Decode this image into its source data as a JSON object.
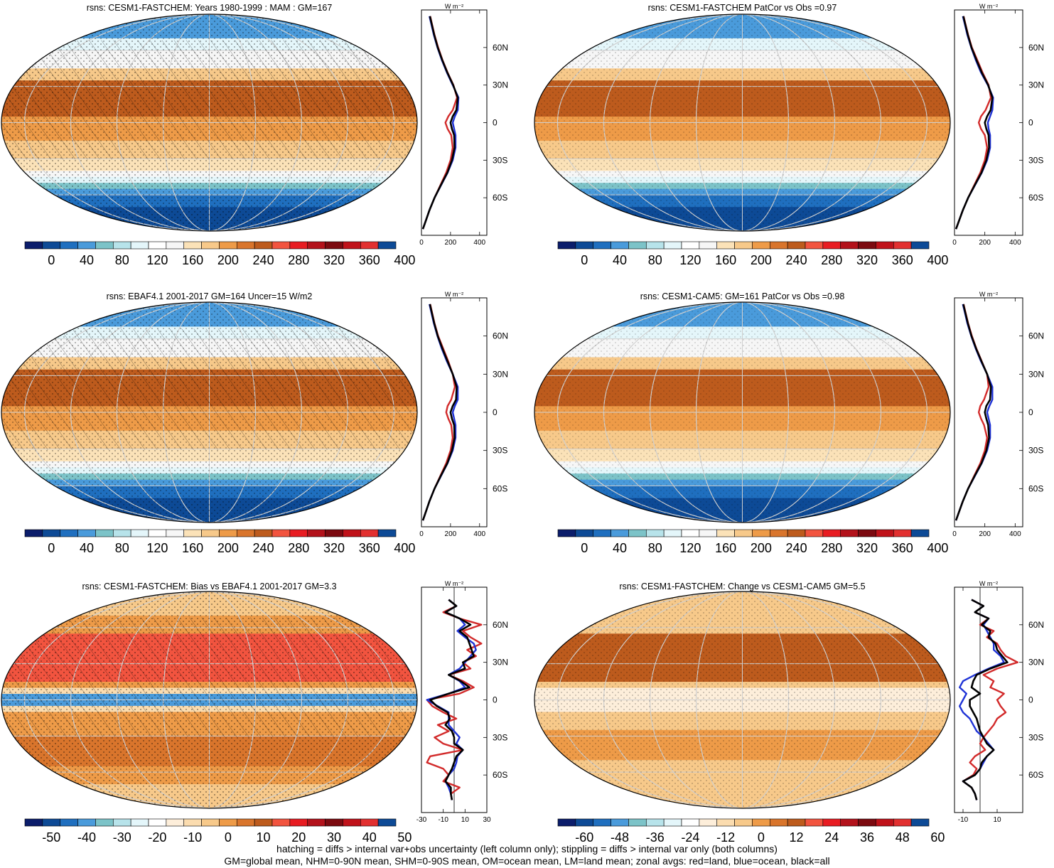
{
  "colors": {
    "abs_scale": [
      "#0b1d6b",
      "#0d4a96",
      "#1f6fbf",
      "#4a9bdb",
      "#7cc3c8",
      "#b7e3ea",
      "#e4f6fa",
      "#ffffff",
      "#f6f6f6",
      "#fbe2b8",
      "#f7c98a",
      "#ee9b48",
      "#d9752c",
      "#bd5b1d",
      "#f2543f",
      "#e81c22",
      "#b3121b",
      "#7c0a10",
      "#c0121a",
      "#e23030",
      "#0d4a96"
    ],
    "diff_scale": [
      "#0b1d6b",
      "#0d4a96",
      "#1f6fbf",
      "#4a9bdb",
      "#7cc3c8",
      "#b7e3ea",
      "#e4f6fa",
      "#ffffff",
      "#fdeeda",
      "#fbdcaf",
      "#f7c98a",
      "#ee9b48",
      "#d9752c",
      "#bd5b1d",
      "#f2543f",
      "#e81c22",
      "#b3121b",
      "#7c0a10",
      "#c0121a",
      "#e23030",
      "#0d4a96"
    ],
    "land": "#d22a2a",
    "ocean": "#1f33d6",
    "all": "#000000"
  },
  "chart_data": [
    {
      "id": "p1",
      "type": "heatmap",
      "title": "rsns: CESM1-FASTCHEM: Years 1980-1999 : MAM : GM=167",
      "field": "abs",
      "hatching": true,
      "stipple_density": 0.5,
      "colorbar_ticks": [
        "0",
        "40",
        "80",
        "120",
        "160",
        "200",
        "240",
        "280",
        "320",
        "360",
        "400"
      ],
      "zonal": {
        "unit": "W m⁻²",
        "xlim": [
          0,
          450
        ],
        "xticks": [
          0,
          200,
          400
        ],
        "lat_ticks": [
          "60N",
          "30N",
          "0",
          "30S",
          "60S"
        ],
        "lat": [
          85,
          80,
          70,
          60,
          50,
          40,
          30,
          20,
          10,
          5,
          0,
          -5,
          -10,
          -20,
          -30,
          -40,
          -50,
          -60,
          -70,
          -80,
          -85
        ],
        "series": [
          {
            "key": "land",
            "values": [
              60,
              70,
              90,
              115,
              145,
              180,
              220,
              245,
              215,
              185,
              165,
              180,
              205,
              215,
              200,
              170,
              130,
              90,
              55,
              25,
              10
            ]
          },
          {
            "key": "ocean",
            "values": [
              55,
              65,
              85,
              110,
              140,
              175,
              215,
              255,
              250,
              230,
              215,
              225,
              235,
              235,
              215,
              180,
              135,
              90,
              55,
              25,
              10
            ]
          },
          {
            "key": "all",
            "values": [
              58,
              68,
              88,
              112,
              143,
              178,
              218,
              250,
              240,
              215,
              200,
              210,
              225,
              228,
              210,
              178,
              133,
              90,
              55,
              25,
              10
            ]
          }
        ]
      }
    },
    {
      "id": "p2",
      "type": "heatmap",
      "title": "rsns: CESM1-FASTCHEM PatCor vs Obs =0.97",
      "field": "abs",
      "hatching": false,
      "stipple_density": 0.25,
      "colorbar_ticks": [
        "0",
        "40",
        "80",
        "120",
        "160",
        "200",
        "240",
        "280",
        "320",
        "360",
        "400"
      ],
      "zonal": {
        "unit": "W m⁻²",
        "xlim": [
          0,
          450
        ],
        "xticks": [
          0,
          200,
          400
        ],
        "lat_ticks": [
          "60N",
          "30N",
          "0",
          "30S",
          "60S"
        ],
        "lat": [
          85,
          80,
          70,
          60,
          50,
          40,
          30,
          20,
          10,
          5,
          0,
          -5,
          -10,
          -20,
          -30,
          -40,
          -50,
          -60,
          -70,
          -80,
          -85
        ],
        "series": [
          {
            "key": "land",
            "values": [
              60,
              70,
              90,
              115,
              150,
              185,
              225,
              240,
              205,
              175,
              160,
              175,
              200,
              215,
              200,
              170,
              130,
              90,
              55,
              25,
              10
            ]
          },
          {
            "key": "ocean",
            "values": [
              55,
              65,
              85,
              110,
              140,
              175,
              220,
              255,
              250,
              235,
              220,
              225,
              235,
              235,
              215,
              180,
              135,
              90,
              55,
              25,
              10
            ]
          },
          {
            "key": "all",
            "values": [
              58,
              68,
              88,
              112,
              145,
              180,
              222,
              250,
              238,
              215,
              200,
              210,
              225,
              228,
              210,
              178,
              133,
              90,
              55,
              25,
              10
            ]
          }
        ]
      }
    },
    {
      "id": "p3",
      "type": "heatmap",
      "title": "rsns: EBAF4.1 2001-2017 GM=164 Uncer=15 W/m2",
      "field": "abs",
      "hatching": true,
      "stipple_density": 0.45,
      "colorbar_ticks": [
        "0",
        "40",
        "80",
        "120",
        "160",
        "200",
        "240",
        "280",
        "320",
        "360",
        "400"
      ],
      "zonal": {
        "unit": "W m⁻²",
        "xlim": [
          0,
          450
        ],
        "xticks": [
          0,
          200,
          400
        ],
        "lat_ticks": [
          "60N",
          "30N",
          "0",
          "30S",
          "60S"
        ],
        "lat": [
          85,
          80,
          70,
          60,
          50,
          40,
          30,
          20,
          10,
          5,
          0,
          -5,
          -10,
          -20,
          -30,
          -40,
          -50,
          -60,
          -70,
          -80,
          -85
        ],
        "series": [
          {
            "key": "land",
            "values": [
              60,
              70,
              90,
              115,
              150,
              185,
              215,
              230,
              205,
              180,
              170,
              185,
              205,
              215,
              200,
              170,
              130,
              90,
              55,
              25,
              10
            ]
          },
          {
            "key": "ocean",
            "values": [
              55,
              65,
              85,
              110,
              140,
              175,
              215,
              250,
              250,
              230,
              215,
              225,
              235,
              235,
              215,
              180,
              135,
              90,
              55,
              25,
              10
            ]
          },
          {
            "key": "all",
            "values": [
              58,
              68,
              88,
              112,
              145,
              180,
              215,
              242,
              238,
              215,
              200,
              210,
              225,
              228,
              210,
              178,
              133,
              90,
              55,
              25,
              10
            ]
          }
        ]
      }
    },
    {
      "id": "p4",
      "type": "heatmap",
      "title": "rsns: CESM1-CAM5: GM=161 PatCor vs Obs =0.98",
      "field": "abs",
      "hatching": false,
      "stipple_density": 0.2,
      "colorbar_ticks": [
        "0",
        "40",
        "80",
        "120",
        "160",
        "200",
        "240",
        "280",
        "320",
        "360",
        "400"
      ],
      "zonal": {
        "unit": "W m⁻²",
        "xlim": [
          0,
          450
        ],
        "xticks": [
          0,
          200,
          400
        ],
        "lat_ticks": [
          "60N",
          "30N",
          "0",
          "30S",
          "60S"
        ],
        "lat": [
          85,
          80,
          70,
          60,
          50,
          40,
          30,
          20,
          10,
          5,
          0,
          -5,
          -10,
          -20,
          -30,
          -40,
          -50,
          -60,
          -70,
          -80,
          -85
        ],
        "series": [
          {
            "key": "land",
            "values": [
              60,
              70,
              90,
              115,
              145,
              180,
              215,
              225,
              195,
              170,
              160,
              175,
              195,
              215,
              200,
              170,
              130,
              90,
              55,
              25,
              10
            ]
          },
          {
            "key": "ocean",
            "values": [
              55,
              65,
              85,
              110,
              140,
              175,
              215,
              250,
              250,
              230,
              215,
              225,
              235,
              235,
              215,
              180,
              135,
              90,
              55,
              25,
              10
            ]
          },
          {
            "key": "all",
            "values": [
              58,
              68,
              88,
              112,
              143,
              178,
              215,
              240,
              235,
              210,
              200,
              210,
              222,
              228,
              210,
              178,
              133,
              90,
              55,
              25,
              10
            ]
          }
        ]
      }
    },
    {
      "id": "p5",
      "type": "heatmap",
      "title": "rsns: CESM1-FASTCHEM: Bias vs EBAF4.1 2001-2017 GM=3.3",
      "field": "bias",
      "hatching": true,
      "stipple_density": 0.55,
      "colorbar_ticks": [
        "-50",
        "-40",
        "-30",
        "-20",
        "-10",
        "0",
        "10",
        "20",
        "30",
        "40",
        "50"
      ],
      "zonal": {
        "unit": "W m⁻²",
        "xlim": [
          -30,
          30
        ],
        "xticks": [
          -30,
          -10,
          10,
          30
        ],
        "lat_ticks": [
          "60N",
          "30N",
          "0",
          "30S",
          "60S"
        ],
        "lat": [
          80,
          75,
          70,
          65,
          60,
          55,
          50,
          45,
          40,
          35,
          30,
          25,
          20,
          15,
          10,
          5,
          0,
          -5,
          -10,
          -15,
          -20,
          -25,
          -30,
          -35,
          -40,
          -45,
          -50,
          -55,
          -60,
          -65,
          -70,
          -75,
          -80
        ],
        "series": [
          {
            "key": "land",
            "values": [
              -5,
              2,
              -10,
              5,
              25,
              8,
              15,
              25,
              12,
              20,
              8,
              15,
              -5,
              8,
              18,
              5,
              -25,
              -20,
              -10,
              2,
              -15,
              -5,
              -18,
              -10,
              8,
              -22,
              -25,
              -10,
              -5,
              -10,
              5,
              -3,
              -2
            ]
          },
          {
            "key": "ocean",
            "values": [
              -5,
              2,
              -8,
              5,
              10,
              3,
              10,
              18,
              20,
              15,
              10,
              5,
              -5,
              5,
              10,
              -5,
              -25,
              -15,
              -5,
              -5,
              -5,
              0,
              5,
              2,
              8,
              3,
              2,
              0,
              -5,
              -8,
              -5,
              -3,
              -2
            ]
          },
          {
            "key": "all",
            "values": [
              -5,
              2,
              -8,
              5,
              15,
              5,
              12,
              14,
              16,
              18,
              8,
              10,
              -5,
              6,
              14,
              -5,
              -22,
              -16,
              -6,
              -4,
              -8,
              -2,
              0,
              0,
              8,
              2,
              0,
              -2,
              -5,
              -8,
              -3,
              -3,
              -2
            ]
          }
        ]
      }
    },
    {
      "id": "p6",
      "type": "heatmap",
      "title": "rsns: CESM1-FASTCHEM: Change vs CESM1-CAM5 GM=5.5",
      "field": "change",
      "hatching": false,
      "stipple_density": 0.3,
      "colorbar_ticks": [
        "-60",
        "-48",
        "-36",
        "-24",
        "-12",
        "0",
        "12",
        "24",
        "36",
        "48",
        "60"
      ],
      "zonal": {
        "unit": "W m⁻²",
        "xlim": [
          -15,
          25
        ],
        "xticks": [
          -10,
          10
        ],
        "lat_ticks": [
          "60N",
          "30N",
          "0",
          "30S",
          "60S"
        ],
        "lat": [
          80,
          75,
          70,
          65,
          60,
          55,
          50,
          45,
          40,
          35,
          30,
          25,
          20,
          15,
          10,
          5,
          0,
          -5,
          -10,
          -15,
          -20,
          -25,
          -30,
          -35,
          -40,
          -45,
          -50,
          -55,
          -60,
          -65,
          -70,
          -75,
          -80
        ],
        "series": [
          {
            "key": "land",
            "values": [
              -5,
              2,
              -3,
              5,
              0,
              8,
              4,
              10,
              12,
              15,
              22,
              10,
              2,
              8,
              6,
              14,
              10,
              12,
              15,
              10,
              8,
              5,
              2,
              0,
              3,
              -3,
              -6,
              -2,
              -4,
              -10,
              -5,
              -3,
              -2
            ]
          },
          {
            "key": "ocean",
            "values": [
              -5,
              2,
              -3,
              5,
              2,
              4,
              6,
              8,
              8,
              12,
              14,
              5,
              -3,
              -10,
              -12,
              -8,
              -10,
              -12,
              -10,
              -6,
              -4,
              -2,
              2,
              5,
              8,
              4,
              2,
              0,
              -3,
              -10,
              -5,
              -3,
              -2
            ]
          },
          {
            "key": "all",
            "values": [
              -5,
              2,
              -3,
              5,
              1,
              6,
              5,
              9,
              10,
              13,
              16,
              6,
              -2,
              -4,
              -5,
              0,
              -6,
              -6,
              -4,
              -2,
              -1,
              0,
              2,
              4,
              8,
              4,
              1,
              0,
              -3,
              -10,
              -5,
              -3,
              -2
            ]
          }
        ]
      }
    }
  ],
  "footer": {
    "line1": "hatching = diffs > internal var+obs uncertainty (left column only); stippling = diffs > internal var only (both columns)",
    "line2": "GM=global mean, NHM=0-90N mean, SHM=0-90S mean, OM=ocean mean, LM=land mean; zonal avgs: red=land, blue=ocean, black=all"
  }
}
